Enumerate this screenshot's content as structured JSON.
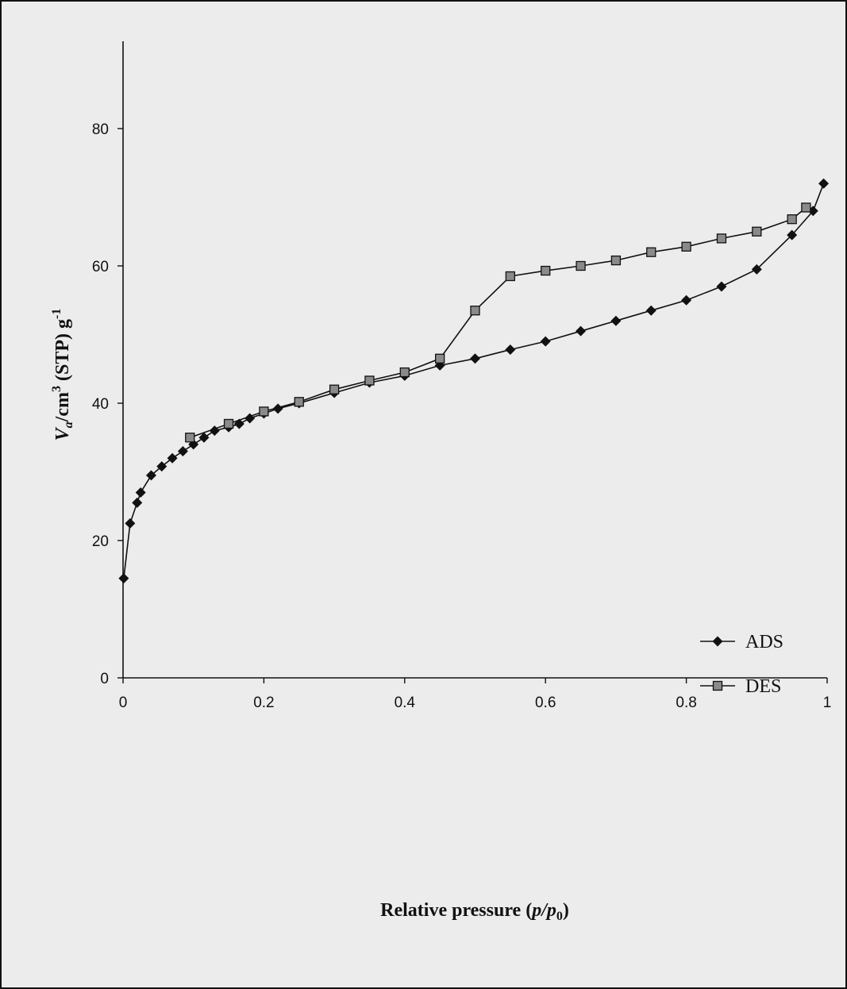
{
  "chart_data": {
    "type": "line",
    "xlim": [
      0,
      1
    ],
    "ylim": [
      0,
      90
    ],
    "x_ticks": [
      0,
      0.2,
      0.4,
      0.6,
      0.8,
      1
    ],
    "x_tick_labels": [
      "0",
      "0.2",
      "0.4",
      "0.6",
      "0.8",
      "1"
    ],
    "y_ticks": [
      0,
      20,
      40,
      60,
      80
    ],
    "y_tick_labels": [
      "0",
      "20",
      "40",
      "60",
      "80"
    ],
    "xlabel": {
      "main": "Relative pressure (",
      "var_p": "p",
      "slash": "/",
      "var_p0": "p",
      "sub0": "0",
      "close": ")"
    },
    "ylabel": {
      "var": "V",
      "sub_a": "a",
      "unit1": "/cm",
      "sup3": "3",
      "unit2": " (STP) g",
      "sup_neg1": "-1"
    },
    "grid": false,
    "legend_position": "right",
    "series": [
      {
        "name": "ADS",
        "marker": "diamond",
        "color": "#111111",
        "x": [
          0.001,
          0.01,
          0.02,
          0.025,
          0.04,
          0.055,
          0.07,
          0.085,
          0.1,
          0.115,
          0.13,
          0.15,
          0.165,
          0.18,
          0.2,
          0.22,
          0.25,
          0.3,
          0.35,
          0.4,
          0.45,
          0.5,
          0.55,
          0.6,
          0.65,
          0.7,
          0.75,
          0.8,
          0.85,
          0.9,
          0.95,
          0.98,
          0.995
        ],
        "y": [
          14.5,
          22.5,
          25.5,
          27,
          29.5,
          30.8,
          32,
          33,
          34,
          35,
          36,
          36.5,
          37,
          37.8,
          38.5,
          39.2,
          40,
          41.5,
          43,
          44,
          45.5,
          46.5,
          47.8,
          49,
          50.5,
          52,
          53.5,
          55,
          57,
          59.5,
          64.5,
          68,
          72
        ]
      },
      {
        "name": "DES",
        "marker": "square",
        "color": "#111111",
        "x": [
          0.095,
          0.15,
          0.2,
          0.25,
          0.3,
          0.35,
          0.4,
          0.45,
          0.5,
          0.55,
          0.6,
          0.65,
          0.7,
          0.75,
          0.8,
          0.85,
          0.9,
          0.95,
          0.97
        ],
        "y": [
          35,
          37,
          38.8,
          40.2,
          42,
          43.3,
          44.5,
          46.5,
          53.5,
          58.5,
          59.3,
          60,
          60.8,
          62,
          62.8,
          64,
          65,
          66.8,
          68.5
        ]
      }
    ]
  }
}
